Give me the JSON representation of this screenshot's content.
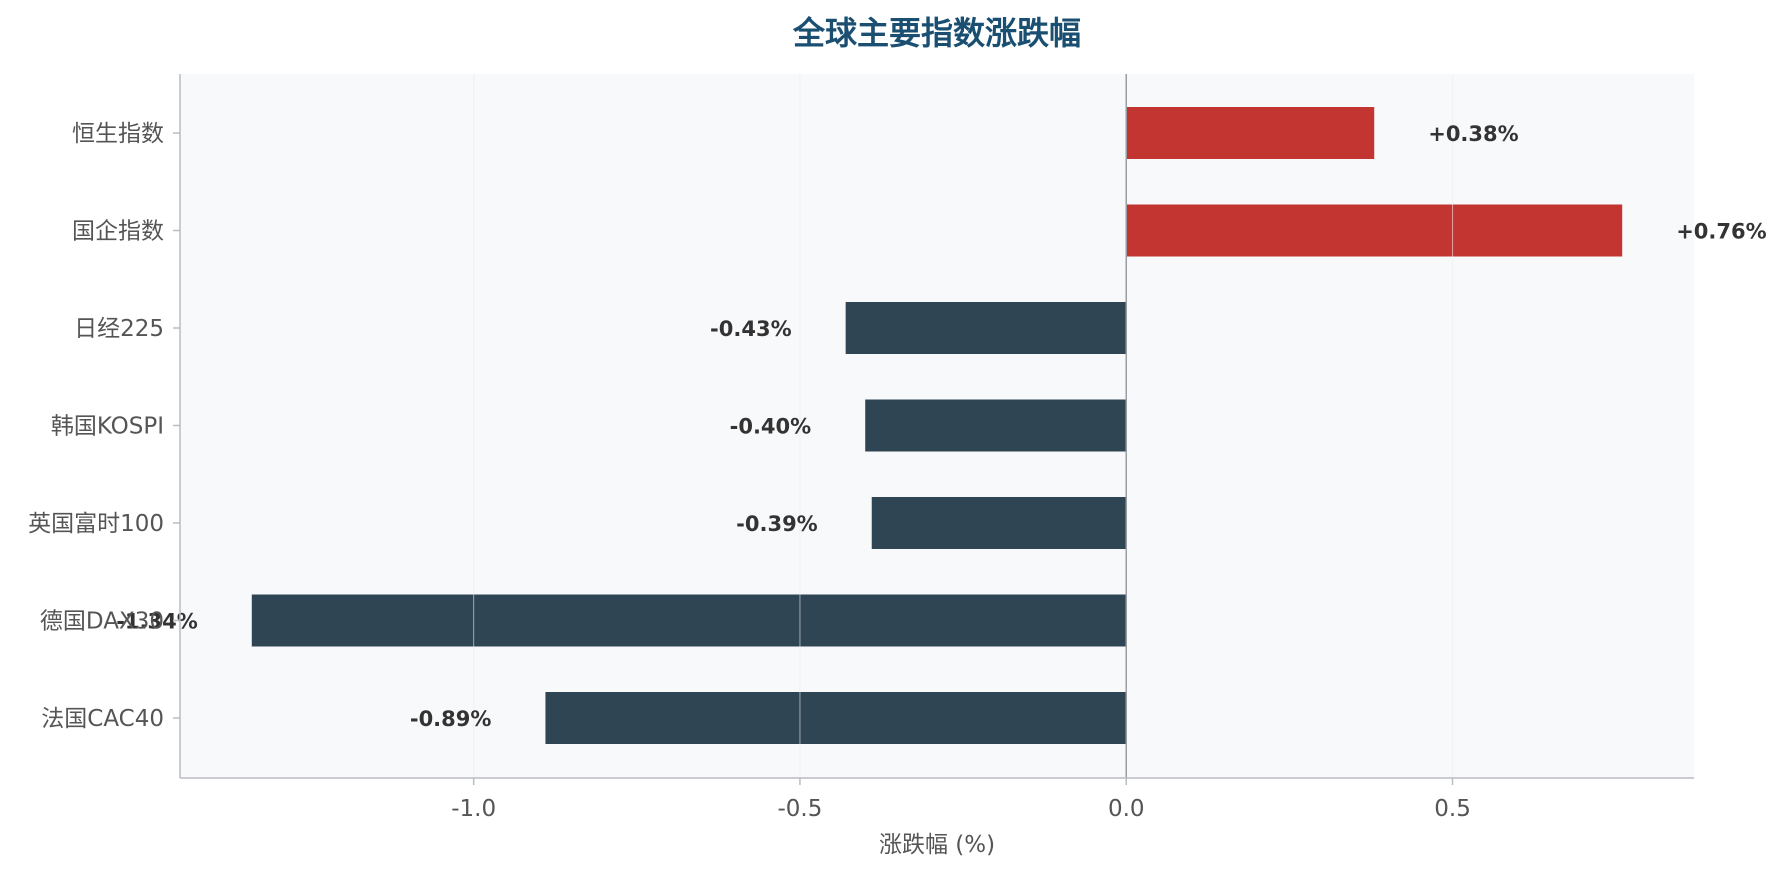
{
  "chart_data": {
    "type": "bar",
    "orientation": "horizontal",
    "title": "全球主要指数涨跌幅",
    "xlabel": "涨跌幅 (%)",
    "ylabel": "",
    "xlim": [
      -1.45,
      0.87
    ],
    "xticks": [
      -1.0,
      -0.5,
      0.0,
      0.5
    ],
    "xtick_labels": [
      "-1.0",
      "-0.5",
      "0.0",
      "0.5"
    ],
    "grid": "vertical",
    "categories": [
      "恒生指数",
      "国企指数",
      "日经225",
      "韩国KOSPI",
      "英国富时100",
      "德国DAX30",
      "法国CAC40"
    ],
    "values": [
      0.38,
      0.76,
      -0.43,
      -0.4,
      -0.39,
      -1.34,
      -0.89
    ],
    "data_labels": [
      "+0.38%",
      "+0.76%",
      "-0.43%",
      "-0.40%",
      "-0.39%",
      "-1.34%",
      "-0.89%"
    ]
  },
  "colors": {
    "title": "#1a4f72",
    "positive": "#c23531",
    "negative": "#2f4554",
    "plot_bg": "#f8f9fb",
    "grid": "#e0e3e8",
    "axis": "#b9bcc2",
    "zero_line": "#9a9da3",
    "tick_text": "#555555",
    "label_text": "#333333"
  }
}
